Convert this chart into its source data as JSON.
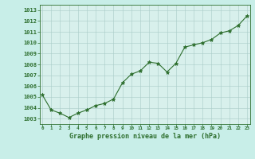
{
  "x": [
    0,
    1,
    2,
    3,
    4,
    5,
    6,
    7,
    8,
    9,
    10,
    11,
    12,
    13,
    14,
    15,
    16,
    17,
    18,
    19,
    20,
    21,
    22,
    23
  ],
  "y": [
    1005.2,
    1003.8,
    1003.5,
    1003.1,
    1003.5,
    1003.8,
    1004.2,
    1004.4,
    1004.8,
    1006.3,
    1007.1,
    1007.4,
    1008.2,
    1008.1,
    1007.3,
    1008.1,
    1009.6,
    1009.8,
    1010.0,
    1010.3,
    1010.9,
    1011.1,
    1011.6,
    1012.5
  ],
  "line_color": "#2d6e2d",
  "marker": "*",
  "marker_color": "#2d6e2d",
  "bg_color": "#c8eee8",
  "plot_bg_color": "#d8f0ec",
  "grid_color": "#a8ccc8",
  "xlabel": "Graphe pression niveau de la mer (hPa)",
  "xlabel_color": "#2d6e2d",
  "tick_color": "#2d6e2d",
  "ytick_labels": [
    "1003",
    "1004",
    "1005",
    "1006",
    "1007",
    "1008",
    "1009",
    "1010",
    "1011",
    "1012",
    "1013"
  ],
  "ytick_values": [
    1003,
    1004,
    1005,
    1006,
    1007,
    1008,
    1009,
    1010,
    1011,
    1012,
    1013
  ],
  "ylim": [
    1002.5,
    1013.5
  ],
  "xlim": [
    -0.3,
    23.3
  ],
  "xtick_labels": [
    "0",
    "1",
    "2",
    "3",
    "4",
    "5",
    "6",
    "7",
    "8",
    "9",
    "10",
    "11",
    "12",
    "13",
    "14",
    "15",
    "16",
    "17",
    "18",
    "19",
    "20",
    "21",
    "22",
    "23"
  ]
}
